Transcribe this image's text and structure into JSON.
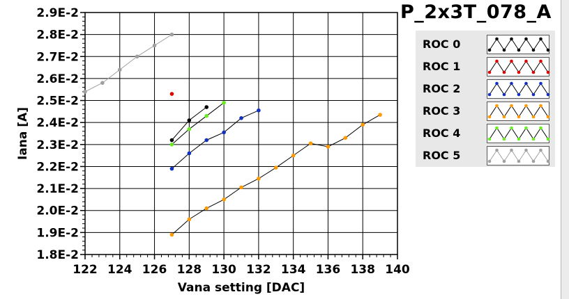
{
  "device_title": "P_2x3T_078_A",
  "legend": [
    {
      "label": "ROC 0",
      "color": "#000000",
      "line_color": "#000000"
    },
    {
      "label": "ROC 1",
      "color": "#dd0000",
      "line_color": "#000000"
    },
    {
      "label": "ROC 2",
      "color": "#1030c0",
      "line_color": "#000000"
    },
    {
      "label": "ROC 3",
      "color": "#ff9900",
      "line_color": "#000000"
    },
    {
      "label": "ROC 4",
      "color": "#66ee22",
      "line_color": "#000000"
    },
    {
      "label": "ROC 5",
      "color": "#a0a0a0",
      "line_color": "#a0a0a0"
    }
  ],
  "chart_data": {
    "type": "line",
    "title": "P_2x3T_078_A",
    "xlabel": "Vana setting [DAC]",
    "ylabel": "Iana [A]",
    "xlim": [
      122,
      140
    ],
    "ylim": [
      0.018,
      0.029
    ],
    "xticks": [
      "122",
      "124",
      "126",
      "128",
      "130",
      "132",
      "134",
      "136",
      "138",
      "140"
    ],
    "yticks": [
      "1.8E-2",
      "1.9E-2",
      "2.0E-2",
      "2.1E-2",
      "2.2E-2",
      "2.3E-2",
      "2.4E-2",
      "2.5E-2",
      "2.6E-2",
      "2.7E-2",
      "2.8E-2",
      "2.9E-2"
    ],
    "grid": true,
    "legend_position": "right",
    "series": [
      {
        "name": "ROC 0",
        "color": "#000000",
        "points": [
          [
            127,
            0.0232
          ],
          [
            128,
            0.0241
          ],
          [
            129,
            0.0247
          ]
        ]
      },
      {
        "name": "ROC 1",
        "color": "#dd0000",
        "points": [
          [
            127,
            0.0253
          ]
        ]
      },
      {
        "name": "ROC 2",
        "color": "#1030c0",
        "points": [
          [
            127,
            0.0219
          ],
          [
            128,
            0.0226
          ],
          [
            129,
            0.0232
          ],
          [
            130,
            0.02355
          ],
          [
            131,
            0.0242
          ],
          [
            132,
            0.02455
          ]
        ]
      },
      {
        "name": "ROC 3",
        "color": "#ff9900",
        "points": [
          [
            127,
            0.0189
          ],
          [
            128,
            0.0196
          ],
          [
            129,
            0.0201
          ],
          [
            130,
            0.0205
          ],
          [
            131,
            0.02105
          ],
          [
            132,
            0.02145
          ],
          [
            133,
            0.02195
          ],
          [
            134,
            0.0225
          ],
          [
            135,
            0.02305
          ],
          [
            136,
            0.0229
          ],
          [
            137,
            0.0233
          ],
          [
            138,
            0.0239
          ],
          [
            139,
            0.02435
          ]
        ]
      },
      {
        "name": "ROC 4",
        "color": "#66ee22",
        "points": [
          [
            127,
            0.023
          ],
          [
            128,
            0.0237
          ],
          [
            129,
            0.0243
          ],
          [
            130,
            0.0249
          ]
        ]
      },
      {
        "name": "ROC 5",
        "color": "#a0a0a0",
        "points": [
          [
            122,
            0.0254
          ],
          [
            123,
            0.0258
          ],
          [
            124,
            0.0264
          ],
          [
            125,
            0.027
          ],
          [
            126,
            0.0275
          ],
          [
            127,
            0.028
          ]
        ]
      }
    ]
  }
}
